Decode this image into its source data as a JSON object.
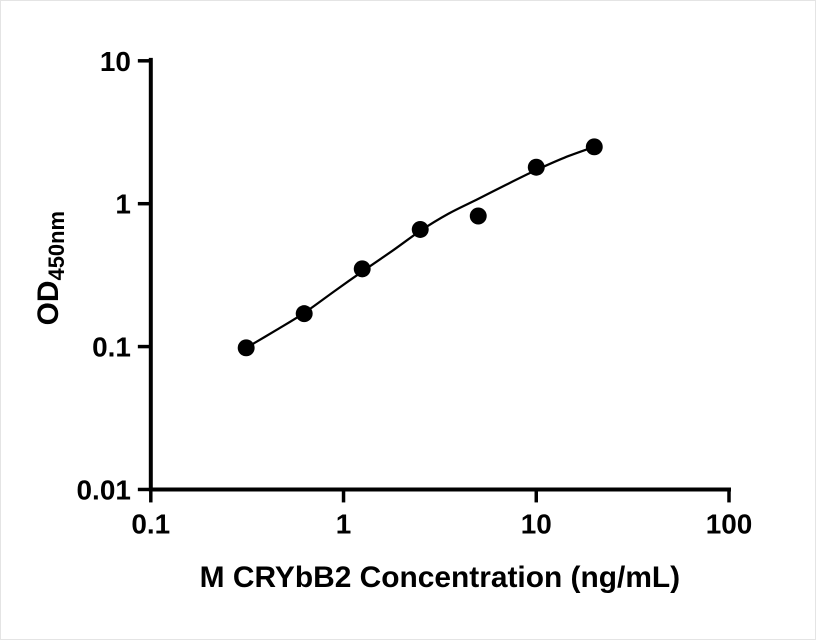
{
  "figure": {
    "background": "#ffffff",
    "border_color": "#e4e4e4"
  },
  "chart_data": {
    "type": "scatter",
    "title": "",
    "xlabel": "M CRYbB2 Concentration (ng/mL)",
    "ylabel": "OD",
    "ylabel_subscript": "450nm",
    "x_scale": "log",
    "y_scale": "log",
    "xlim": [
      0.1,
      100
    ],
    "ylim": [
      0.01,
      10
    ],
    "x_tick_values": [
      0.1,
      1,
      10,
      100
    ],
    "x_tick_labels": [
      "0.1",
      "1",
      "10",
      "100"
    ],
    "y_tick_values": [
      0.01,
      0.1,
      1,
      10
    ],
    "y_tick_labels": [
      "0.01",
      "0.1",
      "1",
      "10"
    ],
    "grid": false,
    "legend": "none",
    "marker_color": "#000000",
    "line_color": "#000000",
    "series": [
      {
        "name": "fit-curve",
        "type": "line",
        "x": [
          0.3125,
          0.45,
          0.625,
          0.9,
          1.25,
          1.8,
          2.5,
          3.5,
          5,
          7,
          10,
          14,
          20
        ],
        "y": [
          0.098,
          0.131,
          0.172,
          0.245,
          0.335,
          0.47,
          0.645,
          0.85,
          1.08,
          1.36,
          1.72,
          2.1,
          2.5
        ]
      },
      {
        "name": "standard-points",
        "type": "scatter",
        "x": [
          0.3125,
          0.625,
          1.25,
          2.5,
          5,
          10,
          20
        ],
        "y": [
          0.098,
          0.17,
          0.35,
          0.66,
          0.82,
          1.8,
          2.5
        ]
      }
    ]
  }
}
